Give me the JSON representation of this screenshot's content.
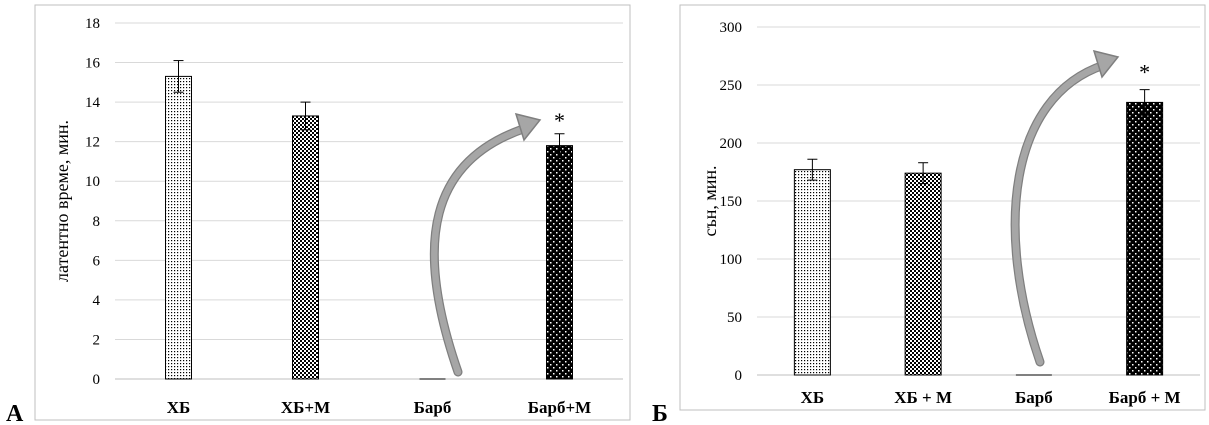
{
  "chart_data": [
    {
      "type": "bar",
      "panel_letter": "А",
      "ylabel": "латентно време, мин.",
      "ylim": [
        0,
        18
      ],
      "yticks": [
        0,
        2,
        4,
        6,
        8,
        10,
        12,
        14,
        16,
        18
      ],
      "categories": [
        "ХБ",
        "ХБ+М",
        "Барб",
        "Барб+М"
      ],
      "values": [
        15.3,
        13.3,
        0,
        11.8
      ],
      "errors": [
        0.8,
        0.7,
        0,
        0.6
      ],
      "patterns": [
        "fine-dots",
        "crosshatch",
        "none",
        "white-dots-on-black"
      ],
      "significance": [
        "",
        "",
        "",
        "*"
      ],
      "annotation": "curved arrow from Барб to Барб+М",
      "grid": true
    },
    {
      "type": "bar",
      "panel_letter": "Б",
      "ylabel": "сън, мин.",
      "ylim": [
        0,
        300
      ],
      "yticks": [
        0,
        50,
        100,
        150,
        200,
        250,
        300
      ],
      "categories": [
        "ХБ",
        "ХБ + М",
        "Барб",
        "Барб + М"
      ],
      "values": [
        177,
        174,
        0,
        235
      ],
      "errors": [
        9,
        9,
        0,
        11
      ],
      "patterns": [
        "fine-dots",
        "crosshatch",
        "none",
        "white-dots-on-black"
      ],
      "significance": [
        "",
        "",
        "",
        "*"
      ],
      "annotation": "curved arrow from Барб to Барб + М",
      "grid": true
    }
  ],
  "colors": {
    "grid": "#d9d9d9",
    "axis": "#bfbfbf",
    "frame": "#bfbfbf",
    "bar_outline": "#000000",
    "arrow_fill": "#a6a6a6",
    "arrow_stroke": "#7f7f7f"
  }
}
